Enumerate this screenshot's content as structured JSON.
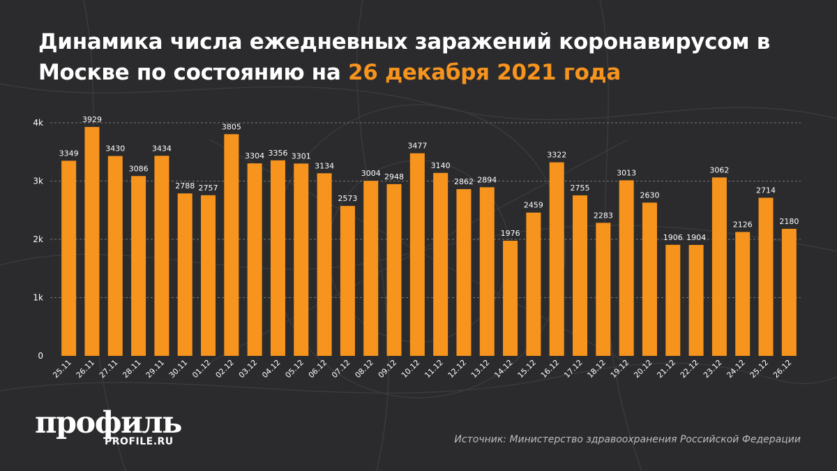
{
  "title": {
    "main": "Динамика числа ежедневных заражений коронавирусом в Москве по состоянию на ",
    "accent": "26 декабря 2021 года"
  },
  "colors": {
    "background": "#2b2b2d",
    "bar": "#f7941d",
    "text": "#ffffff",
    "grid": "#777777"
  },
  "chart_data": {
    "type": "bar",
    "title": "Динамика числа ежедневных заражений коронавирусом в Москве по состоянию на 26 декабря 2021 года",
    "categories": [
      "25.11",
      "26.11",
      "27.11",
      "28.11",
      "29.11",
      "30.11",
      "01.12",
      "02.12",
      "03.12",
      "04.12",
      "05.12",
      "06.12",
      "07.12",
      "08.12",
      "09.12",
      "10.12",
      "11.12",
      "12.12",
      "13.12",
      "14.12",
      "15.12",
      "16.12",
      "17.12",
      "18.12",
      "19.12",
      "20.12",
      "21.12",
      "22.12",
      "23.12",
      "24.12",
      "25.12",
      "26.12"
    ],
    "values": [
      3349,
      3929,
      3430,
      3086,
      3434,
      2788,
      2757,
      3805,
      3304,
      3356,
      3301,
      3134,
      2573,
      3004,
      2948,
      3477,
      3140,
      2862,
      2894,
      1976,
      2459,
      3322,
      2755,
      2283,
      3013,
      2630,
      1906,
      1904,
      3062,
      2126,
      2714,
      2180
    ],
    "y_ticks": [
      {
        "value": 0,
        "label": "0"
      },
      {
        "value": 1000,
        "label": "1k"
      },
      {
        "value": 2000,
        "label": "2k"
      },
      {
        "value": 3000,
        "label": "3k"
      },
      {
        "value": 4000,
        "label": "4k"
      }
    ],
    "ylim": [
      0,
      4000
    ],
    "grid": true,
    "xlabel": "",
    "ylabel": ""
  },
  "logo": {
    "name": "профиль",
    "url": "PROFILE.RU"
  },
  "source": "Источник: Министерство здравоохранения Российской Федерации"
}
